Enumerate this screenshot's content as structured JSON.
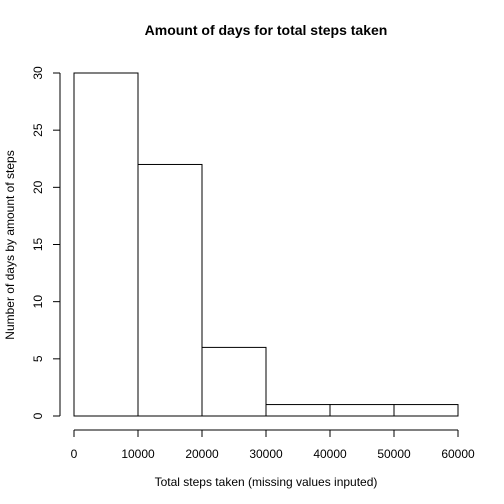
{
  "chart_data": {
    "type": "bar",
    "title": "Amount of days for total steps taken",
    "xlabel": "Total steps taken (missing values inputed)",
    "ylabel": "Number of days by amount of steps",
    "bins": [
      {
        "start": 0,
        "end": 10000,
        "count": 30
      },
      {
        "start": 10000,
        "end": 20000,
        "count": 22
      },
      {
        "start": 20000,
        "end": 30000,
        "count": 6
      },
      {
        "start": 30000,
        "end": 40000,
        "count": 1
      },
      {
        "start": 40000,
        "end": 50000,
        "count": 1
      },
      {
        "start": 50000,
        "end": 60000,
        "count": 1
      }
    ],
    "xlim": [
      0,
      60000
    ],
    "ylim": [
      0,
      30
    ],
    "xticks": [
      0,
      10000,
      20000,
      30000,
      40000,
      50000,
      60000
    ],
    "yticks": [
      0,
      5,
      10,
      15,
      20,
      25,
      30
    ],
    "grid": false,
    "legend": "none"
  }
}
